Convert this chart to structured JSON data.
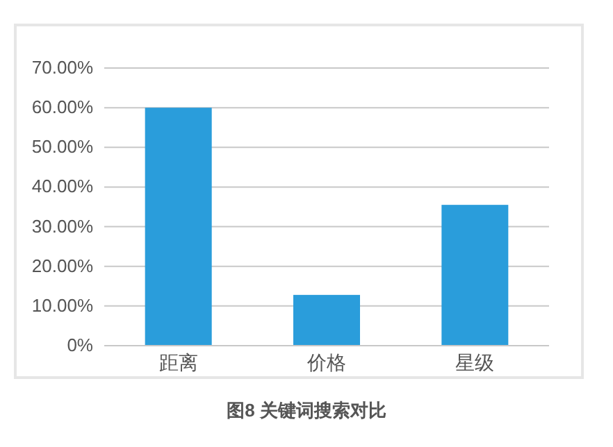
{
  "chart_data": {
    "type": "bar",
    "title": "图8 关键词搜索对比",
    "categories": [
      "距离",
      "价格",
      "星级"
    ],
    "values": [
      60,
      12.8,
      35.5
    ],
    "color": "#2a9ddb",
    "ylim": [
      0,
      70
    ],
    "yticks": [
      {
        "value": 0,
        "label": "0%"
      },
      {
        "value": 10,
        "label": "10.00%"
      },
      {
        "value": 20,
        "label": "20.00%"
      },
      {
        "value": 30,
        "label": "30.00%"
      },
      {
        "value": 40,
        "label": "40.00%"
      },
      {
        "value": 50,
        "label": "50.00%"
      },
      {
        "value": 60,
        "label": "60.00%"
      },
      {
        "value": 70,
        "label": "70.00%"
      }
    ],
    "grid": "y"
  }
}
